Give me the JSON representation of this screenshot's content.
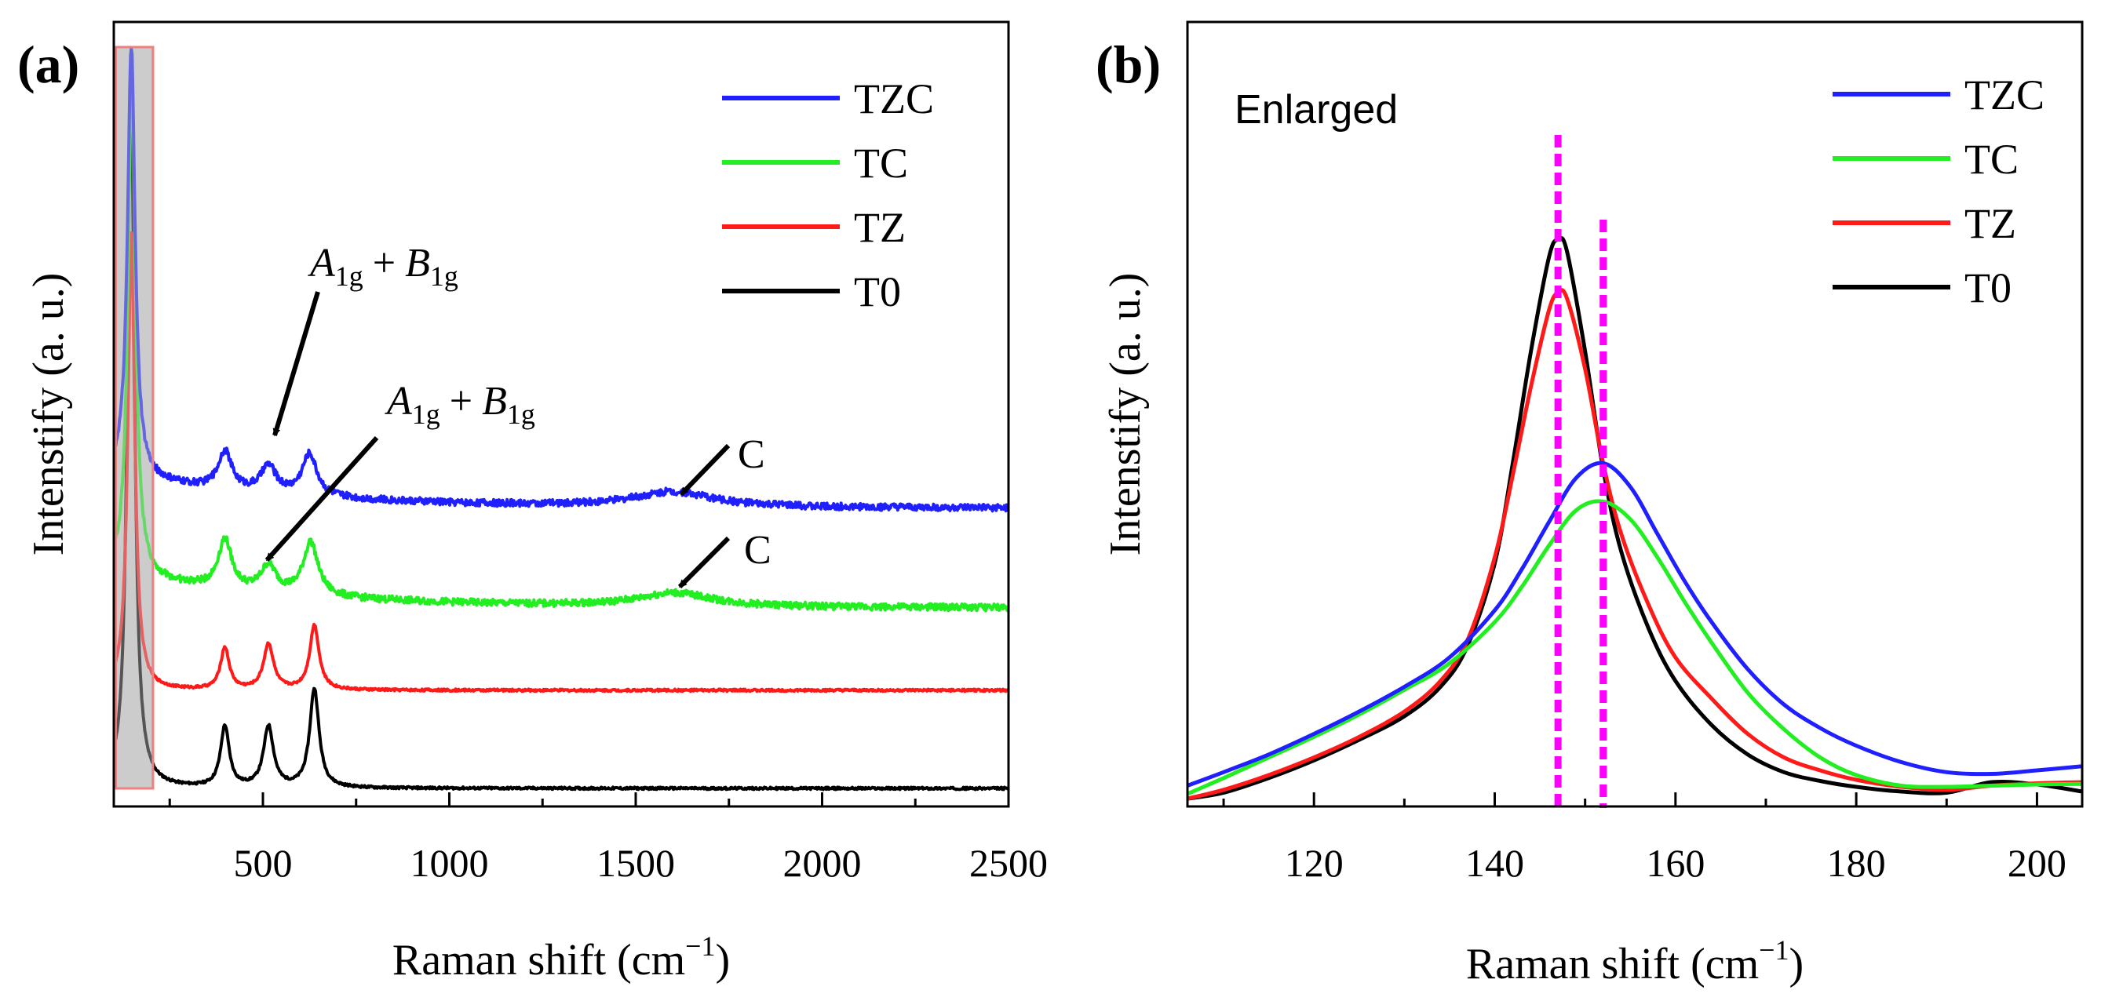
{
  "colors": {
    "TZC": "#1f1fff",
    "TC": "#22ee22",
    "TZ": "#ff1a1a",
    "T0": "#000000",
    "marker": "#ff00ff",
    "highlight_fill": "#d9d9d9",
    "highlight_stroke": "#f08080"
  },
  "chart_data": [
    {
      "type": "line",
      "panel_label": "(a)",
      "title": "",
      "xlabel": "Raman shift (cm",
      "xlabel_sup": "−1",
      "xlabel_close": ")",
      "ylabel": "Intenstify (a. u.)",
      "xlim": [
        100,
        2500
      ],
      "ylim": [
        0,
        10
      ],
      "xticks": [
        500,
        1000,
        1500,
        2000,
        2500
      ],
      "xtick_labels": [
        "500",
        "1000",
        "1500",
        "2000",
        "2500"
      ],
      "legend": [
        "TZC",
        "TC",
        "TZ",
        "T0"
      ],
      "highlight_range": [
        105,
        205
      ],
      "baselines": {
        "TZC": 4.3,
        "TC": 2.7,
        "TZ": 1.35,
        "T0": 0.0
      },
      "annotations": [
        {
          "id": "a1",
          "A": "A",
          "A_sub": "1g",
          "plus": "+",
          "B": "B",
          "B_sub": "1g",
          "series": "TZC",
          "x": 520
        },
        {
          "id": "a2",
          "A": "A",
          "A_sub": "1g",
          "plus": "+",
          "B": "B",
          "B_sub": "1g",
          "series": "TC",
          "x": 510
        },
        {
          "id": "c1",
          "text": "C",
          "series": "TZC",
          "x": 1620
        },
        {
          "id": "c2",
          "text": "C",
          "series": "TC",
          "x": 1610
        }
      ],
      "peaks": {
        "TZC": [
          {
            "x": 147,
            "h": 5.7,
            "w": 12
          },
          {
            "x": 398,
            "h": 0.5,
            "w": 22
          },
          {
            "x": 515,
            "h": 0.35,
            "w": 25
          },
          {
            "x": 625,
            "h": 0.55,
            "w": 24
          },
          {
            "x": 1600,
            "h": 0.2,
            "w": 130
          }
        ],
        "TC": [
          {
            "x": 148,
            "h": 6.6,
            "w": 12
          },
          {
            "x": 398,
            "h": 0.65,
            "w": 22
          },
          {
            "x": 515,
            "h": 0.35,
            "w": 25
          },
          {
            "x": 628,
            "h": 0.7,
            "w": 24
          },
          {
            "x": 1605,
            "h": 0.18,
            "w": 120
          }
        ],
        "TZ": [
          {
            "x": 147,
            "h": 6.0,
            "w": 11
          },
          {
            "x": 398,
            "h": 0.55,
            "w": 14
          },
          {
            "x": 515,
            "h": 0.6,
            "w": 16
          },
          {
            "x": 638,
            "h": 0.85,
            "w": 15
          }
        ],
        "T0": [
          {
            "x": 146,
            "h": 9.4,
            "w": 11
          },
          {
            "x": 398,
            "h": 0.8,
            "w": 14
          },
          {
            "x": 515,
            "h": 0.8,
            "w": 16
          },
          {
            "x": 638,
            "h": 1.3,
            "w": 15
          }
        ]
      }
    },
    {
      "type": "line",
      "panel_label": "(b)",
      "title": "Enlarged",
      "xlabel": "Raman shift (cm",
      "xlabel_sup": "−1",
      "xlabel_close": ")",
      "ylabel": "Intenstify (a. u.)",
      "xlim": [
        106,
        205
      ],
      "ylim": [
        0,
        1.0
      ],
      "xticks": [
        120,
        140,
        160,
        180,
        200
      ],
      "xtick_labels": [
        "120",
        "140",
        "160",
        "180",
        "200"
      ],
      "legend": [
        "TZC",
        "TC",
        "TZ",
        "T0"
      ],
      "reference_lines_x": [
        147,
        152
      ],
      "series": [
        {
          "name": "TZC",
          "x": [
            106,
            110,
            115,
            120,
            125,
            130,
            135,
            140,
            143,
            146,
            149,
            152,
            155,
            158,
            161,
            164,
            168,
            172,
            176,
            180,
            185,
            190,
            195,
            200,
            205
          ],
          "y": [
            0.022,
            0.045,
            0.075,
            0.11,
            0.148,
            0.19,
            0.24,
            0.32,
            0.39,
            0.47,
            0.545,
            0.57,
            0.53,
            0.45,
            0.37,
            0.3,
            0.22,
            0.16,
            0.12,
            0.09,
            0.062,
            0.045,
            0.042,
            0.048,
            0.055
          ]
        },
        {
          "name": "TC",
          "x": [
            106,
            110,
            115,
            120,
            125,
            130,
            135,
            140,
            143,
            146,
            149,
            152,
            155,
            158,
            161,
            164,
            168,
            172,
            176,
            180,
            185,
            190,
            195,
            200,
            205
          ],
          "y": [
            0.008,
            0.035,
            0.07,
            0.105,
            0.143,
            0.185,
            0.23,
            0.3,
            0.36,
            0.43,
            0.49,
            0.505,
            0.475,
            0.41,
            0.335,
            0.265,
            0.18,
            0.118,
            0.07,
            0.04,
            0.022,
            0.02,
            0.022,
            0.024,
            0.025
          ]
        },
        {
          "name": "TZ",
          "x": [
            106,
            110,
            115,
            120,
            125,
            130,
            134,
            137,
            140,
            142,
            144,
            146,
            147,
            148,
            150,
            152,
            154,
            157,
            160,
            164,
            168,
            172,
            176,
            180,
            185,
            190,
            195,
            200,
            205
          ],
          "y": [
            0.0,
            0.015,
            0.04,
            0.07,
            0.105,
            0.148,
            0.2,
            0.27,
            0.41,
            0.55,
            0.7,
            0.83,
            0.86,
            0.85,
            0.73,
            0.57,
            0.45,
            0.33,
            0.24,
            0.17,
            0.11,
            0.07,
            0.048,
            0.032,
            0.02,
            0.015,
            0.022,
            0.026,
            0.028
          ]
        },
        {
          "name": "T0",
          "x": [
            106,
            110,
            115,
            120,
            125,
            130,
            134,
            137,
            140,
            142,
            144,
            146,
            147,
            148,
            150,
            152,
            154,
            157,
            160,
            164,
            168,
            172,
            176,
            180,
            185,
            190,
            195,
            200,
            205
          ],
          "y": [
            0.0,
            0.01,
            0.035,
            0.065,
            0.1,
            0.14,
            0.19,
            0.26,
            0.4,
            0.57,
            0.76,
            0.92,
            0.95,
            0.93,
            0.76,
            0.56,
            0.42,
            0.29,
            0.2,
            0.125,
            0.075,
            0.045,
            0.03,
            0.02,
            0.012,
            0.01,
            0.028,
            0.024,
            0.012
          ]
        }
      ]
    }
  ]
}
